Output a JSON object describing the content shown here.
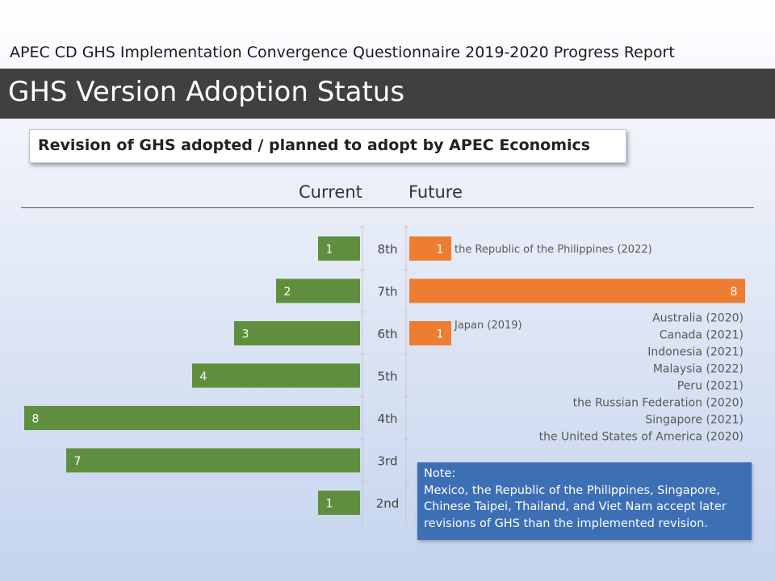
{
  "header": {
    "subtitle": "APEC CD GHS Implementation Convergence Questionnaire 2019-2020 Progress Report",
    "title": "GHS Version Adoption Status"
  },
  "section": {
    "heading": "Revision of GHS adopted / planned to adopt by APEC Economics"
  },
  "columns": {
    "current": "Current",
    "future": "Future"
  },
  "chart_data": {
    "type": "bar",
    "orientation": "horizontal-butterfly",
    "categories": [
      "8th",
      "7th",
      "6th",
      "5th",
      "4th",
      "3rd",
      "2nd"
    ],
    "series": [
      {
        "name": "Current",
        "color": "#5f8f3e",
        "values": [
          1,
          2,
          3,
          4,
          8,
          7,
          1
        ]
      },
      {
        "name": "Future",
        "color": "#ed7d31",
        "values": [
          1,
          8,
          1,
          null,
          null,
          null,
          null
        ]
      }
    ],
    "xlim": [
      0,
      8
    ],
    "annotations": [
      {
        "category": "8th",
        "text": [
          "the Republic of the Philippines (2022)"
        ]
      },
      {
        "category": "7th",
        "text": [
          "Australia (2020)",
          "Canada (2021)",
          "Indonesia (2021)",
          "Malaysia (2022)",
          "Peru (2021)",
          "the Russian Federation (2020)",
          "Singapore (2021)",
          "the United States of America (2020)"
        ]
      },
      {
        "category": "6th",
        "text": [
          "Japan (2019)"
        ]
      }
    ]
  },
  "note": {
    "heading": "Note:",
    "lines": [
      "Mexico, the Republic of the Philippines, Singapore,",
      "Chinese Taipei, Thailand, and Viet Nam accept later",
      "revisions of GHS than the implemented revision."
    ]
  }
}
